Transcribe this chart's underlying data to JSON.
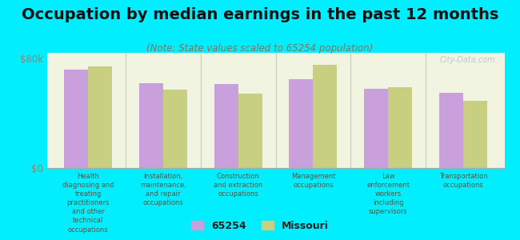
{
  "title": "Occupation by median earnings in the past 12 months",
  "subtitle": "(Note: State values scaled to 65254 population)",
  "background_color": "#00eeff",
  "plot_bg_color": "#f0f4e0",
  "categories": [
    "Health\ndiagnosing and\ntreating\npractitioners\nand other\ntechnical\noccupations",
    "Installation,\nmaintenance,\nand repair\noccupations",
    "Construction\nand extraction\noccupations",
    "Management\noccupations",
    "Law\nenforcement\nworkers\nincluding\nsupervisors",
    "Transportation\noccupations"
  ],
  "values_65254": [
    72000,
    62000,
    61000,
    65000,
    58000,
    55000
  ],
  "values_missouri": [
    74000,
    57000,
    54000,
    75000,
    59000,
    49000
  ],
  "color_65254": "#c9a0dc",
  "color_missouri": "#c8cf80",
  "ylim_max": 80000,
  "ytick_labels": [
    "$0",
    "$80k"
  ],
  "legend_label_65254": "65254",
  "legend_label_missouri": "Missouri",
  "watermark": "City-Data.com",
  "title_fontsize": 14,
  "subtitle_fontsize": 8.5,
  "tick_label_color": "#888870",
  "category_label_color": "#555540",
  "divider_color": "#ccccbb",
  "watermark_color": "#aabbcc"
}
